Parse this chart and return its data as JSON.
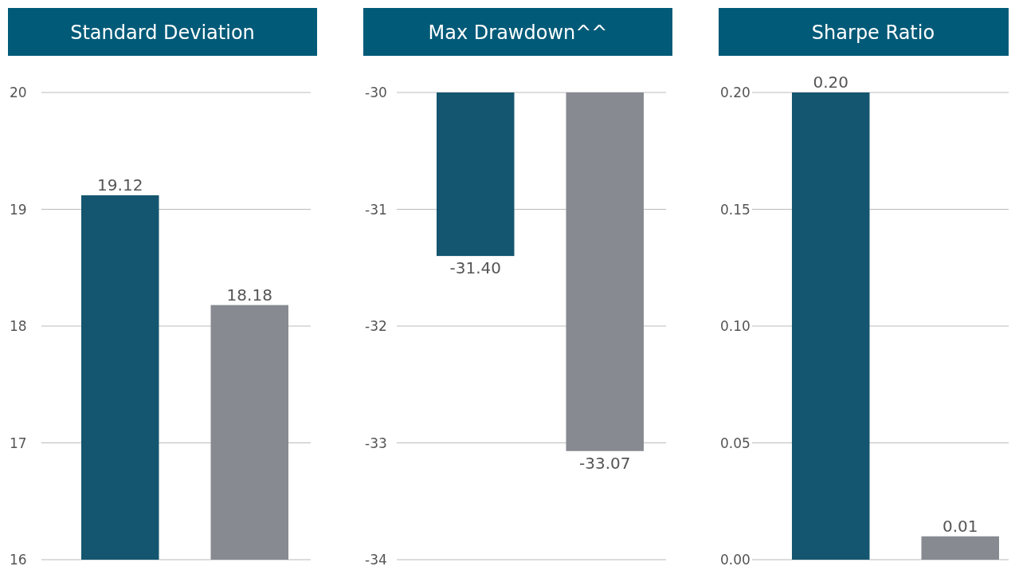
{
  "chart_data": [
    {
      "type": "bar",
      "title": "Standard Deviation",
      "categories": [
        null,
        null
      ],
      "values": [
        19.12,
        18.18
      ],
      "colors": [
        "#14566f",
        "#878a91"
      ],
      "value_labels": [
        "19.12",
        "18.18"
      ],
      "ylim": [
        16,
        20
      ],
      "yticks": [
        16,
        17,
        18,
        19,
        20
      ],
      "grid": "y"
    },
    {
      "type": "bar",
      "title": "Max Drawdown^^",
      "categories": [
        null,
        null
      ],
      "values": [
        -31.4,
        -33.07
      ],
      "colors": [
        "#14566f",
        "#878a91"
      ],
      "value_labels": [
        "-31.40",
        "-33.07"
      ],
      "ylim": [
        -34,
        -30
      ],
      "yticks": [
        -34,
        -33,
        -32,
        -31,
        -30
      ],
      "grid": "y"
    },
    {
      "type": "bar",
      "title": "Sharpe Ratio",
      "categories": [
        null,
        null
      ],
      "values": [
        0.2,
        0.01
      ],
      "colors": [
        "#14566f",
        "#878a91"
      ],
      "value_labels": [
        "0.20",
        "0.01"
      ],
      "ylim": [
        0,
        0.2
      ],
      "yticks": [
        {
          "value": 0,
          "label": "0.00"
        },
        {
          "value": 0.05,
          "label": "0.05"
        },
        {
          "value": 0.1,
          "label": "0.10"
        },
        {
          "value": 0.15,
          "label": "0.15"
        },
        {
          "value": 0.2,
          "label": "0.20"
        }
      ],
      "grid": "y"
    }
  ]
}
